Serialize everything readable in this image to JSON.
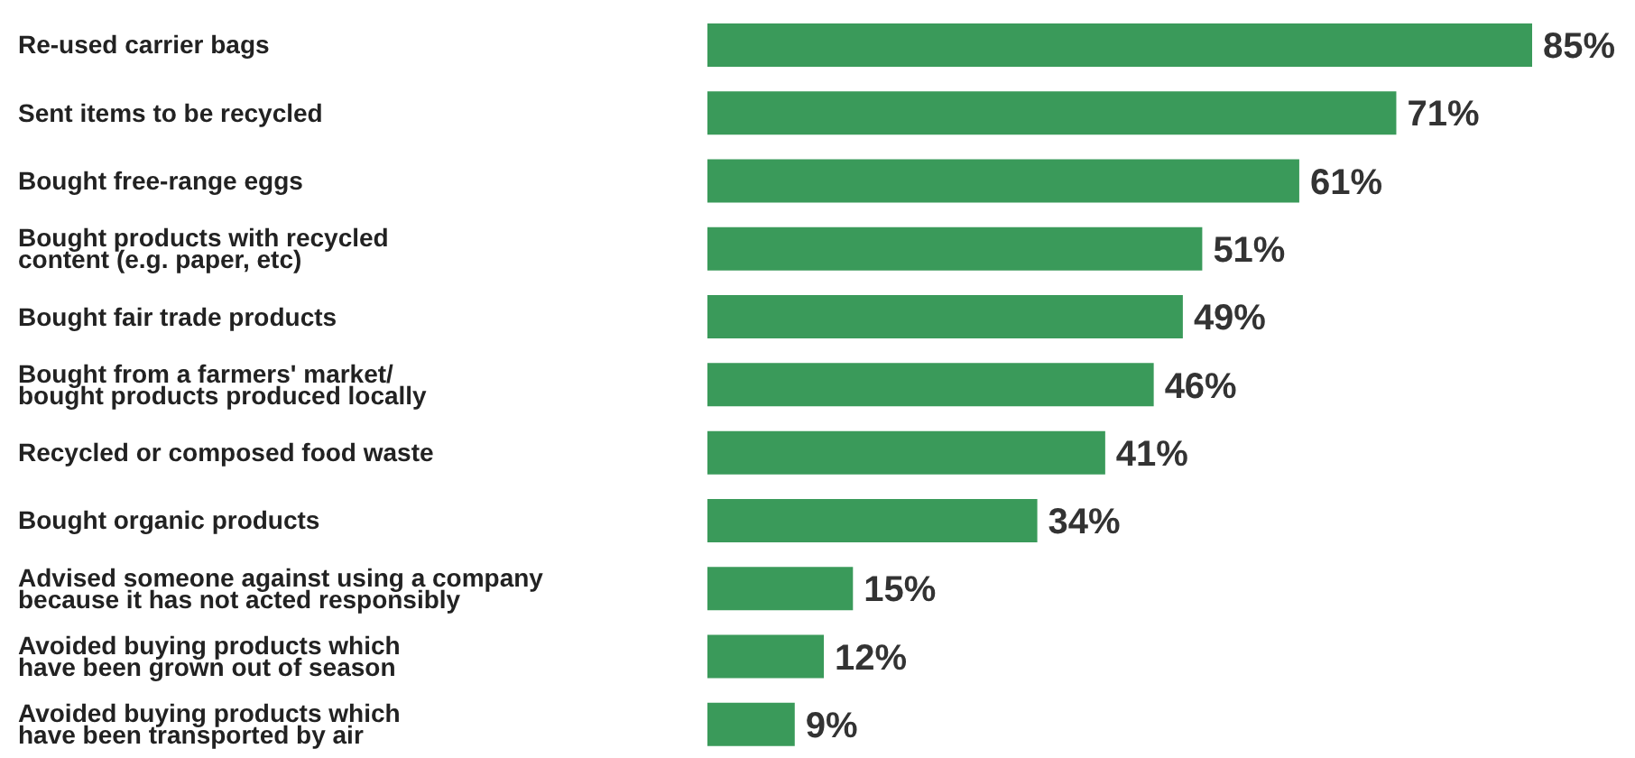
{
  "chart_data": {
    "type": "bar",
    "orientation": "horizontal",
    "categories": [
      "Re-used carrier bags",
      "Sent items to be recycled",
      "Bought free-range eggs",
      "Bought products with recycled\ncontent (e.g. paper, etc)",
      "Bought fair trade products",
      "Bought from a farmers' market/\nbought products produced locally",
      "Recycled or composed food waste",
      "Bought organic products",
      "Advised someone against using a company\nbecause it has not acted responsibly",
      "Avoided buying products which\nhave been grown out of season",
      "Avoided buying products which\nhave been transported by air"
    ],
    "values": [
      85,
      71,
      61,
      51,
      49,
      46,
      41,
      34,
      15,
      12,
      9
    ],
    "value_labels": [
      "85%",
      "71%",
      "61%",
      "51%",
      "49%",
      "46%",
      "41%",
      "34%",
      "15%",
      "12%",
      "9%"
    ],
    "color": "#3a9a5a"
  }
}
